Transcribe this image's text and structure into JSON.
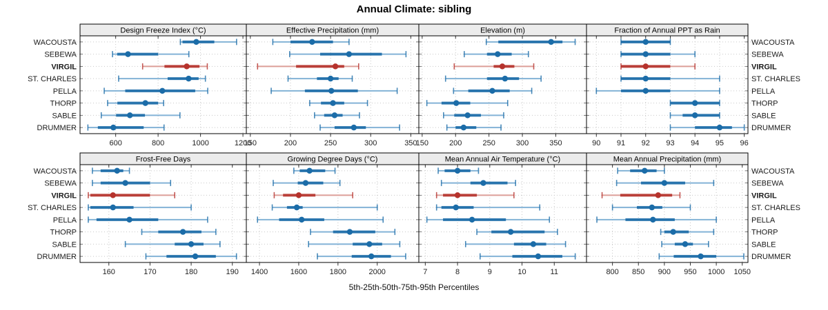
{
  "chart_data": {
    "type": "dotplot",
    "title": "Annual Climate: sibling",
    "caption": "5th-25th-50th-75th-95th Percentiles",
    "percentile_labels": [
      "5th",
      "25th",
      "50th",
      "75th",
      "95th"
    ],
    "categories": [
      "WACOUSTA",
      "SEBEWA",
      "VIRGIL",
      "ST. CHARLES",
      "PELLA",
      "THORP",
      "SABLE",
      "DRUMMER"
    ],
    "highlight": "VIRGIL",
    "legend_position": "none",
    "grid": true,
    "layout": {
      "rows": 2,
      "cols": 4
    },
    "panels": [
      {
        "label": "Design Freeze Index (°C)",
        "xlim": [
          432,
          1216
        ],
        "ticks": [
          600,
          800,
          1000,
          1200
        ],
        "series": [
          {
            "name": "WACOUSTA",
            "p": [
              905,
              915,
              980,
              1065,
              1170
            ]
          },
          {
            "name": "SEBEWA",
            "p": [
              585,
              607,
              658,
              800,
              945
            ]
          },
          {
            "name": "VIRGIL",
            "p": [
              727,
              830,
              935,
              995,
              1032
            ]
          },
          {
            "name": "ST. CHARLES",
            "p": [
              614,
              845,
              944,
              991,
              1023
            ]
          },
          {
            "name": "PELLA",
            "p": [
              546,
              645,
              820,
              975,
              1034
            ]
          },
          {
            "name": "THORP",
            "p": [
              562,
              608,
              740,
              800,
              826
            ]
          },
          {
            "name": "SABLE",
            "p": [
              532,
              602,
              667,
              738,
              903
            ]
          },
          {
            "name": "DRUMMER",
            "p": [
              469,
              516,
              589,
              732,
              828
            ]
          }
        ]
      },
      {
        "label": "Effective Precipitation (mm)",
        "xlim": [
          145,
          360
        ],
        "ticks": [
          150,
          200,
          250,
          300,
          350
        ],
        "series": [
          {
            "name": "WACOUSTA",
            "p": [
              178,
              200,
              227,
              253,
              273
            ]
          },
          {
            "name": "SEBEWA",
            "p": [
              199,
              237,
              273,
              314,
              344
            ]
          },
          {
            "name": "VIRGIL",
            "p": [
              159,
              207,
              256,
              267,
              285
            ]
          },
          {
            "name": "ST. CHARLES",
            "p": [
              197,
              233,
              250,
              260,
              277
            ]
          },
          {
            "name": "PELLA",
            "p": [
              176,
              218,
              251,
              284,
              333
            ]
          },
          {
            "name": "THORP",
            "p": [
              224,
              238,
              253,
              267,
              296
            ]
          },
          {
            "name": "SABLE",
            "p": [
              230,
              242,
              255,
              265,
              286
            ]
          },
          {
            "name": "DRUMMER",
            "p": [
              237,
              255,
              279,
              294,
              336
            ]
          }
        ]
      },
      {
        "label": "Elevation (m)",
        "xlim": [
          145,
          396
        ],
        "ticks": [
          150,
          200,
          250,
          300,
          350
        ],
        "series": [
          {
            "name": "WACOUSTA",
            "p": [
              246,
              264,
              343,
              360,
              379
            ]
          },
          {
            "name": "SEBEWA",
            "p": [
              213,
              247,
              263,
              284,
              309
            ]
          },
          {
            "name": "VIRGIL",
            "p": [
              198,
              257,
              270,
              288,
              317
            ]
          },
          {
            "name": "ST. CHARLES",
            "p": [
              185,
              247,
              274,
              295,
              328
            ]
          },
          {
            "name": "PELLA",
            "p": [
              197,
              219,
              255,
              281,
              314
            ]
          },
          {
            "name": "THORP",
            "p": [
              157,
              179,
              201,
              222,
              278
            ]
          },
          {
            "name": "SABLE",
            "p": [
              182,
              198,
              218,
              238,
              272
            ]
          },
          {
            "name": "DRUMMER",
            "p": [
              187,
              200,
              212,
              231,
              268
            ]
          }
        ]
      },
      {
        "label": "Fraction of Annual PPT as Rain",
        "xlim": [
          89.6,
          96.15
        ],
        "ticks": [
          90,
          91,
          92,
          93,
          94,
          95,
          96
        ],
        "series": [
          {
            "name": "WACOUSTA",
            "p": [
              91,
              91,
              92,
              93,
              93
            ]
          },
          {
            "name": "SEBEWA",
            "p": [
              91,
              91,
              92,
              93,
              94
            ]
          },
          {
            "name": "VIRGIL",
            "p": [
              91,
              91,
              92,
              93,
              94
            ]
          },
          {
            "name": "ST. CHARLES",
            "p": [
              91,
              91,
              92,
              93,
              95
            ]
          },
          {
            "name": "PELLA",
            "p": [
              90,
              91,
              92,
              93,
              95
            ]
          },
          {
            "name": "THORP",
            "p": [
              93,
              93,
              94,
              95,
              95
            ]
          },
          {
            "name": "SABLE",
            "p": [
              93,
              93.5,
              94,
              95,
              95
            ]
          },
          {
            "name": "DRUMMER",
            "p": [
              93,
              94,
              95,
              95.5,
              96
            ]
          }
        ]
      },
      {
        "label": "Frost-Free Days",
        "xlim": [
          153,
          193.4
        ],
        "ticks": [
          160,
          170,
          180,
          190
        ],
        "series": [
          {
            "name": "WACOUSTA",
            "p": [
              156,
              158,
              162,
              163.5,
              165
            ]
          },
          {
            "name": "SEBEWA",
            "p": [
              156,
              158,
              164,
              170,
              175
            ]
          },
          {
            "name": "VIRGIL",
            "p": [
              155,
              155.5,
              161,
              170,
              176
            ]
          },
          {
            "name": "ST. CHARLES",
            "p": [
              155,
              155.5,
              161,
              166,
              180
            ]
          },
          {
            "name": "PELLA",
            "p": [
              155,
              157,
              165,
              172,
              184
            ]
          },
          {
            "name": "THORP",
            "p": [
              168,
              172,
              178,
              182.5,
              186
            ]
          },
          {
            "name": "SABLE",
            "p": [
              164,
              176,
              180,
              183,
              187
            ]
          },
          {
            "name": "DRUMMER",
            "p": [
              169,
              174,
              181,
              186,
              191
            ]
          }
        ]
      },
      {
        "label": "Growing Degree Days (°C)",
        "xlim": [
          1333,
          2212
        ],
        "ticks": [
          1400,
          1600,
          1800,
          2000
        ],
        "series": [
          {
            "name": "WACOUSTA",
            "p": [
              1575,
              1605,
              1655,
              1735,
              1785
            ]
          },
          {
            "name": "SEBEWA",
            "p": [
              1470,
              1595,
              1635,
              1725,
              1810
            ]
          },
          {
            "name": "VIRGIL",
            "p": [
              1475,
              1520,
              1600,
              1685,
              1875
            ]
          },
          {
            "name": "ST. CHARLES",
            "p": [
              1465,
              1540,
              1590,
              1620,
              2000
            ]
          },
          {
            "name": "PELLA",
            "p": [
              1390,
              1500,
              1615,
              1730,
              2030
            ]
          },
          {
            "name": "THORP",
            "p": [
              1660,
              1775,
              1860,
              1990,
              2090
            ]
          },
          {
            "name": "SABLE",
            "p": [
              1650,
              1875,
              1960,
              2025,
              2115
            ]
          },
          {
            "name": "DRUMMER",
            "p": [
              1695,
              1870,
              1970,
              2070,
              2145
            ]
          }
        ]
      },
      {
        "label": "Mean Annual Air Temperature (°C)",
        "xlim": [
          6.8,
          12.0
        ],
        "ticks": [
          7,
          8,
          9,
          10,
          11
        ],
        "series": [
          {
            "name": "WACOUSTA",
            "p": [
              7.4,
              7.6,
              8.0,
              8.4,
              8.65
            ]
          },
          {
            "name": "SEBEWA",
            "p": [
              7.5,
              8.4,
              8.8,
              9.55,
              9.8
            ]
          },
          {
            "name": "VIRGIL",
            "p": [
              7.35,
              7.55,
              8.0,
              8.6,
              9.75
            ]
          },
          {
            "name": "ST. CHARLES",
            "p": [
              7.35,
              7.5,
              7.95,
              8.5,
              10.55
            ]
          },
          {
            "name": "PELLA",
            "p": [
              7.05,
              7.55,
              8.45,
              9.5,
              10.85
            ]
          },
          {
            "name": "THORP",
            "p": [
              8.6,
              9.05,
              9.65,
              10.7,
              11.1
            ]
          },
          {
            "name": "SABLE",
            "p": [
              8.25,
              9.75,
              10.35,
              10.75,
              11.35
            ]
          },
          {
            "name": "DRUMMER",
            "p": [
              8.7,
              9.7,
              10.5,
              11.25,
              11.65
            ]
          }
        ]
      },
      {
        "label": "Mean Annual Precipitation (mm)",
        "xlim": [
          750,
          1061
        ],
        "ticks": [
          800,
          850,
          900,
          950,
          1000,
          1050
        ],
        "series": [
          {
            "name": "WACOUSTA",
            "p": [
              810,
              834,
              862,
              885,
              900
            ]
          },
          {
            "name": "SEBEWA",
            "p": [
              808,
              855,
              900,
              940,
              995
            ]
          },
          {
            "name": "VIRGIL",
            "p": [
              780,
              815,
              888,
              915,
              930
            ]
          },
          {
            "name": "ST. CHARLES",
            "p": [
              800,
              847,
              876,
              896,
              950
            ]
          },
          {
            "name": "PELLA",
            "p": [
              770,
              825,
              878,
              920,
              1000
            ]
          },
          {
            "name": "THORP",
            "p": [
              893,
              900,
              917,
              947,
              995
            ]
          },
          {
            "name": "SABLE",
            "p": [
              895,
              920,
              940,
              955,
              985
            ]
          },
          {
            "name": "DRUMMER",
            "p": [
              890,
              918,
              970,
              1000,
              1053
            ]
          }
        ]
      }
    ]
  },
  "style": {
    "blue": "#1b6ca8",
    "blue_light": "#82b2d6",
    "red": "#b6322c",
    "red_light": "#dc9e98",
    "strip_bg": "#ececec",
    "grid": "#c6c6c6",
    "text": "#1a1a1a",
    "tick_text": "#222222",
    "border": "#000000"
  }
}
